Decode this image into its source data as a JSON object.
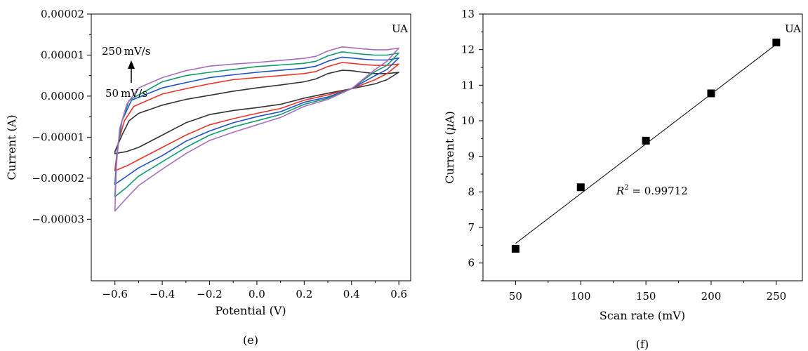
{
  "chart_data": [
    {
      "type": "line",
      "panel_label": "(e)",
      "xlabel": "Potential (V)",
      "ylabel": "Current (A)",
      "xlim": [
        -0.7,
        0.65
      ],
      "ylim": [
        -4.5e-05,
        2e-05
      ],
      "xticks": [
        -0.6,
        -0.4,
        -0.2,
        0.0,
        0.2,
        0.4,
        0.6
      ],
      "xtick_labels": [
        "−0.6",
        "−0.4",
        "−0.2",
        "0.0",
        "0.2",
        "0.4",
        "0.6"
      ],
      "yticks": [
        -3e-05,
        -2e-05,
        -1e-05,
        0,
        1e-05,
        2e-05
      ],
      "ytick_labels": [
        "−0.00003",
        "−0.00002",
        "−0.00001",
        "0.00000",
        "0.00001",
        "0.00002"
      ],
      "grid": false,
      "annotations": {
        "analyte": "UA",
        "high_rate": "250 mV/s",
        "low_rate": "50 mV/s"
      },
      "series": [
        {
          "color": "#333333",
          "upper": [
            [
              -0.6,
              -1.35e-05
            ],
            [
              -0.57,
              -9.5e-06
            ],
            [
              -0.54,
              -6e-06
            ],
            [
              -0.5,
              -4.2e-06
            ],
            [
              -0.4,
              -2.2e-06
            ],
            [
              -0.3,
              -8e-07
            ],
            [
              -0.2,
              2e-07
            ],
            [
              -0.1,
              1.2e-06
            ],
            [
              0.0,
              2e-06
            ],
            [
              0.1,
              2.7e-06
            ],
            [
              0.2,
              3.5e-06
            ],
            [
              0.25,
              4.2e-06
            ],
            [
              0.3,
              5.5e-06
            ],
            [
              0.36,
              6.3e-06
            ],
            [
              0.4,
              6.2e-06
            ],
            [
              0.45,
              5.8e-06
            ],
            [
              0.5,
              5.5e-06
            ],
            [
              0.55,
              5.5e-06
            ],
            [
              0.6,
              5.8e-06
            ]
          ],
          "lower": [
            [
              0.6,
              5.8e-06
            ],
            [
              0.55,
              4e-06
            ],
            [
              0.5,
              3e-06
            ],
            [
              0.4,
              1.8e-06
            ],
            [
              0.3,
              7e-07
            ],
            [
              0.2,
              -5e-07
            ],
            [
              0.1,
              -2e-06
            ],
            [
              0.0,
              -2.8e-06
            ],
            [
              -0.1,
              -3.5e-06
            ],
            [
              -0.2,
              -4.5e-06
            ],
            [
              -0.3,
              -6.5e-06
            ],
            [
              -0.4,
              -9.5e-06
            ],
            [
              -0.5,
              -1.25e-05
            ],
            [
              -0.55,
              -1.35e-05
            ],
            [
              -0.6,
              -1.4e-05
            ]
          ]
        },
        {
          "color": "#e8352c",
          "upper": [
            [
              -0.6,
              -1.8e-05
            ],
            [
              -0.585,
              -1.1e-05
            ],
            [
              -0.56,
              -6e-06
            ],
            [
              -0.52,
              -2.5e-06
            ],
            [
              -0.4,
              5e-07
            ],
            [
              -0.3,
              1.8e-06
            ],
            [
              -0.2,
              3e-06
            ],
            [
              -0.1,
              4e-06
            ],
            [
              0.0,
              4.5e-06
            ],
            [
              0.1,
              5e-06
            ],
            [
              0.2,
              5.5e-06
            ],
            [
              0.25,
              6e-06
            ],
            [
              0.3,
              7.2e-06
            ],
            [
              0.36,
              8.2e-06
            ],
            [
              0.4,
              8e-06
            ],
            [
              0.45,
              7.7e-06
            ],
            [
              0.5,
              7.5e-06
            ],
            [
              0.55,
              7.5e-06
            ],
            [
              0.6,
              7.8e-06
            ]
          ],
          "lower": [
            [
              0.6,
              7.8e-06
            ],
            [
              0.55,
              5.5e-06
            ],
            [
              0.5,
              4e-06
            ],
            [
              0.4,
              1.8e-06
            ],
            [
              0.3,
              3e-07
            ],
            [
              0.2,
              -1e-06
            ],
            [
              0.1,
              -3e-06
            ],
            [
              0.0,
              -4.2e-06
            ],
            [
              -0.1,
              -5.5e-06
            ],
            [
              -0.2,
              -7e-06
            ],
            [
              -0.3,
              -9.5e-06
            ],
            [
              -0.4,
              -1.25e-05
            ],
            [
              -0.5,
              -1.55e-05
            ],
            [
              -0.55,
              -1.7e-05
            ],
            [
              -0.6,
              -1.82e-05
            ]
          ]
        },
        {
          "color": "#1f4fc8",
          "upper": [
            [
              -0.6,
              -2.15e-05
            ],
            [
              -0.59,
              -1.3e-05
            ],
            [
              -0.57,
              -6e-06
            ],
            [
              -0.53,
              -1e-06
            ],
            [
              -0.4,
              2e-06
            ],
            [
              -0.3,
              3.3e-06
            ],
            [
              -0.2,
              4.5e-06
            ],
            [
              -0.1,
              5.2e-06
            ],
            [
              0.0,
              5.8e-06
            ],
            [
              0.1,
              6.3e-06
            ],
            [
              0.2,
              6.8e-06
            ],
            [
              0.25,
              7.3e-06
            ],
            [
              0.3,
              8.5e-06
            ],
            [
              0.36,
              9.5e-06
            ],
            [
              0.4,
              9.3e-06
            ],
            [
              0.45,
              9e-06
            ],
            [
              0.5,
              8.8e-06
            ],
            [
              0.55,
              8.8e-06
            ],
            [
              0.6,
              9.3e-06
            ]
          ],
          "lower": [
            [
              0.6,
              9.3e-06
            ],
            [
              0.55,
              6.5e-06
            ],
            [
              0.5,
              5e-06
            ],
            [
              0.4,
              1.8e-06
            ],
            [
              0.3,
              -2e-07
            ],
            [
              0.2,
              -1.5e-06
            ],
            [
              0.1,
              -3.8e-06
            ],
            [
              0.0,
              -5e-06
            ],
            [
              -0.1,
              -6.5e-06
            ],
            [
              -0.2,
              -8.5e-06
            ],
            [
              -0.3,
              -1.1e-05
            ],
            [
              -0.4,
              -1.45e-05
            ],
            [
              -0.5,
              -1.75e-05
            ],
            [
              -0.55,
              -1.95e-05
            ],
            [
              -0.6,
              -2.15e-05
            ]
          ]
        },
        {
          "color": "#0f9a6e",
          "upper": [
            [
              -0.6,
              -2.45e-05
            ],
            [
              -0.592,
              -1.5e-05
            ],
            [
              -0.575,
              -7e-06
            ],
            [
              -0.54,
              -1e-06
            ],
            [
              -0.4,
              3.5e-06
            ],
            [
              -0.3,
              5e-06
            ],
            [
              -0.2,
              5.8e-06
            ],
            [
              -0.1,
              6.5e-06
            ],
            [
              0.0,
              7.2e-06
            ],
            [
              0.1,
              7.6e-06
            ],
            [
              0.2,
              8e-06
            ],
            [
              0.25,
              8.5e-06
            ],
            [
              0.3,
              9.8e-06
            ],
            [
              0.36,
              1.08e-05
            ],
            [
              0.4,
              1.05e-05
            ],
            [
              0.45,
              1.02e-05
            ],
            [
              0.5,
              1e-05
            ],
            [
              0.55,
              1e-05
            ],
            [
              0.6,
              1.05e-05
            ]
          ],
          "lower": [
            [
              0.6,
              1.05e-05
            ],
            [
              0.55,
              7.5e-06
            ],
            [
              0.5,
              6e-06
            ],
            [
              0.4,
              1.8e-06
            ],
            [
              0.3,
              -5e-07
            ],
            [
              0.2,
              -2e-06
            ],
            [
              0.1,
              -4.5e-06
            ],
            [
              0.0,
              -6e-06
            ],
            [
              -0.1,
              -7.5e-06
            ],
            [
              -0.2,
              -9.5e-06
            ],
            [
              -0.3,
              -1.25e-05
            ],
            [
              -0.4,
              -1.6e-05
            ],
            [
              -0.5,
              -1.95e-05
            ],
            [
              -0.55,
              -2.22e-05
            ],
            [
              -0.6,
              -2.45e-05
            ]
          ]
        },
        {
          "color": "#a86cc1",
          "upper": [
            [
              -0.6,
              -2.8e-05
            ],
            [
              -0.594,
              -1.7e-05
            ],
            [
              -0.58,
              -8e-06
            ],
            [
              -0.55,
              -2e-06
            ],
            [
              -0.5,
              2e-06
            ],
            [
              -0.4,
              4.5e-06
            ],
            [
              -0.3,
              6.2e-06
            ],
            [
              -0.2,
              7.3e-06
            ],
            [
              -0.1,
              7.8e-06
            ],
            [
              0.0,
              8.2e-06
            ],
            [
              0.1,
              8.7e-06
            ],
            [
              0.2,
              9.2e-06
            ],
            [
              0.25,
              9.7e-06
            ],
            [
              0.3,
              1.1e-05
            ],
            [
              0.36,
              1.2e-05
            ],
            [
              0.4,
              1.18e-05
            ],
            [
              0.45,
              1.15e-05
            ],
            [
              0.5,
              1.13e-05
            ],
            [
              0.55,
              1.13e-05
            ],
            [
              0.6,
              1.17e-05
            ]
          ],
          "lower": [
            [
              0.6,
              1.17e-05
            ],
            [
              0.55,
              8.5e-06
            ],
            [
              0.5,
              6.5e-06
            ],
            [
              0.4,
              1.8e-06
            ],
            [
              0.3,
              -8e-07
            ],
            [
              0.2,
              -2.5e-06
            ],
            [
              0.1,
              -5.2e-06
            ],
            [
              0.0,
              -7e-06
            ],
            [
              -0.1,
              -8.8e-06
            ],
            [
              -0.2,
              -1.08e-05
            ],
            [
              -0.3,
              -1.4e-05
            ],
            [
              -0.4,
              -1.78e-05
            ],
            [
              -0.5,
              -2.18e-05
            ],
            [
              -0.55,
              -2.48e-05
            ],
            [
              -0.6,
              -2.8e-05
            ]
          ]
        }
      ]
    },
    {
      "type": "scatter",
      "panel_label": "(f)",
      "xlabel": "Scan rate (mV)",
      "ylabel_prefix": "Current (",
      "ylabel_mu": "μ",
      "ylabel_suffix": "A)",
      "xlim": [
        25,
        270
      ],
      "ylim": [
        5.5,
        13
      ],
      "xticks": [
        50,
        100,
        150,
        200,
        250
      ],
      "yticks": [
        6,
        7,
        8,
        9,
        10,
        11,
        12,
        13
      ],
      "grid": false,
      "analyte": "UA",
      "r2_label": "R",
      "r2_exp": "2",
      "r2_value": " = 0.99712",
      "points": [
        {
          "x": 50,
          "y": 6.4
        },
        {
          "x": 100,
          "y": 8.13
        },
        {
          "x": 150,
          "y": 9.44
        },
        {
          "x": 200,
          "y": 10.77
        },
        {
          "x": 250,
          "y": 12.2
        }
      ],
      "fit": {
        "x": [
          50,
          250
        ],
        "y": [
          6.55,
          12.15
        ]
      }
    }
  ]
}
